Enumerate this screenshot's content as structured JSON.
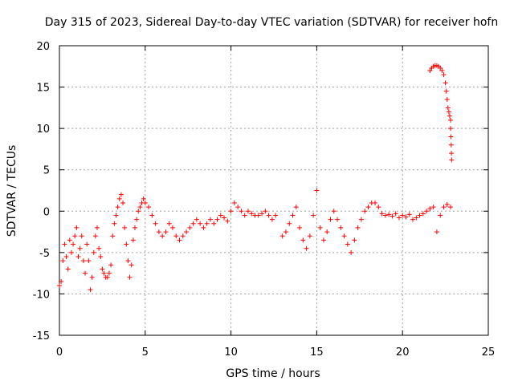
{
  "chart_data": {
    "type": "scatter",
    "title": "Day 315 of 2023, Sidereal Day-to-day VTEC variation (SDTVAR) for receiver hofn",
    "xlabel": "GPS time / hours",
    "ylabel": "SDTVAR / TECUs",
    "xlim": [
      0,
      25
    ],
    "ylim": [
      -15,
      20
    ],
    "xticks": [
      "0",
      "5",
      "10",
      "15",
      "20",
      "25"
    ],
    "yticks": [
      "-15",
      "-10",
      "-5",
      "0",
      "5",
      "10",
      "15",
      "20"
    ],
    "grid": true,
    "marker": "+",
    "color": "#ff0000",
    "series": [
      {
        "name": "SDTVAR",
        "x": [
          0.0,
          0.1,
          0.2,
          0.3,
          0.4,
          0.5,
          0.6,
          0.7,
          0.8,
          0.9,
          1.0,
          1.1,
          1.2,
          1.3,
          1.4,
          1.5,
          1.6,
          1.7,
          1.8,
          1.9,
          2.0,
          2.1,
          2.2,
          2.3,
          2.4,
          2.5,
          2.6,
          2.7,
          2.8,
          2.9,
          3.0,
          3.1,
          3.2,
          3.3,
          3.4,
          3.5,
          3.6,
          3.7,
          3.8,
          3.9,
          4.0,
          4.1,
          4.2,
          4.3,
          4.4,
          4.5,
          4.6,
          4.7,
          4.8,
          4.9,
          5.0,
          5.2,
          5.4,
          5.6,
          5.8,
          6.0,
          6.2,
          6.4,
          6.6,
          6.8,
          7.0,
          7.2,
          7.4,
          7.6,
          7.8,
          8.0,
          8.2,
          8.4,
          8.6,
          8.8,
          9.0,
          9.2,
          9.4,
          9.6,
          9.8,
          10.0,
          10.2,
          10.4,
          10.6,
          10.8,
          11.0,
          11.2,
          11.4,
          11.6,
          11.8,
          12.0,
          12.2,
          12.4,
          12.6,
          13.0,
          13.2,
          13.4,
          13.6,
          13.8,
          14.0,
          14.2,
          14.4,
          14.6,
          14.8,
          15.0,
          15.2,
          15.4,
          15.6,
          15.8,
          16.0,
          16.2,
          16.4,
          16.6,
          16.8,
          17.0,
          17.2,
          17.4,
          17.6,
          17.8,
          18.0,
          18.2,
          18.4,
          18.6,
          18.8,
          19.0,
          19.2,
          19.4,
          19.6,
          19.8,
          20.0,
          20.2,
          20.4,
          20.6,
          20.8,
          21.0,
          21.2,
          21.4,
          21.6,
          21.8,
          22.0,
          22.2,
          22.4,
          22.6,
          22.8,
          21.6,
          21.7,
          21.8,
          21.9,
          22.0,
          22.1,
          22.2,
          22.3,
          22.4,
          22.5,
          22.55,
          22.6,
          22.65,
          22.7,
          22.75,
          22.8,
          22.8,
          22.82,
          22.84,
          22.85,
          22.86
        ],
        "y": [
          -9.0,
          -8.5,
          -6.0,
          -4.0,
          -5.5,
          -7.0,
          -3.5,
          -5.0,
          -4.0,
          -3.0,
          -2.0,
          -5.5,
          -4.5,
          -3.0,
          -6.0,
          -7.5,
          -4.0,
          -6.0,
          -9.5,
          -8.0,
          -5.0,
          -3.0,
          -2.0,
          -4.5,
          -5.5,
          -7.0,
          -7.5,
          -8.0,
          -8.0,
          -7.5,
          -6.5,
          -3.0,
          -1.5,
          -0.5,
          0.5,
          1.5,
          2.0,
          1.0,
          -2.0,
          -4.0,
          -6.0,
          -8.0,
          -6.5,
          -3.5,
          -2.0,
          -1.0,
          0.0,
          0.5,
          1.0,
          1.5,
          1.0,
          0.5,
          -0.5,
          -1.5,
          -2.5,
          -3.0,
          -2.5,
          -1.5,
          -2.0,
          -3.0,
          -3.5,
          -3.0,
          -2.5,
          -2.0,
          -1.5,
          -1.0,
          -1.5,
          -2.0,
          -1.5,
          -1.0,
          -1.5,
          -1.0,
          -0.5,
          -0.8,
          -1.2,
          0.0,
          1.0,
          0.5,
          0.0,
          -0.5,
          0.0,
          -0.3,
          -0.5,
          -0.5,
          -0.3,
          0.0,
          -0.5,
          -1.0,
          -0.5,
          -3.0,
          -2.5,
          -1.5,
          -0.5,
          0.5,
          -2.0,
          -3.5,
          -4.5,
          -3.0,
          -0.5,
          2.5,
          -2.0,
          -3.5,
          -2.5,
          -1.0,
          0.0,
          -1.0,
          -2.0,
          -3.0,
          -4.0,
          -5.0,
          -3.5,
          -2.0,
          -1.0,
          0.0,
          0.5,
          1.0,
          1.0,
          0.5,
          -0.3,
          -0.5,
          -0.4,
          -0.6,
          -0.3,
          -0.8,
          -0.5,
          -0.7,
          -0.4,
          -1.0,
          -0.8,
          -0.5,
          -0.3,
          0.0,
          0.3,
          0.5,
          -2.5,
          -0.5,
          0.5,
          0.8,
          0.5,
          17.0,
          17.3,
          17.5,
          17.6,
          17.6,
          17.5,
          17.3,
          17.0,
          16.5,
          15.5,
          14.5,
          13.5,
          12.5,
          12.0,
          11.5,
          11.0,
          10.0,
          9.0,
          8.0,
          7.0,
          6.2
        ]
      }
    ]
  }
}
